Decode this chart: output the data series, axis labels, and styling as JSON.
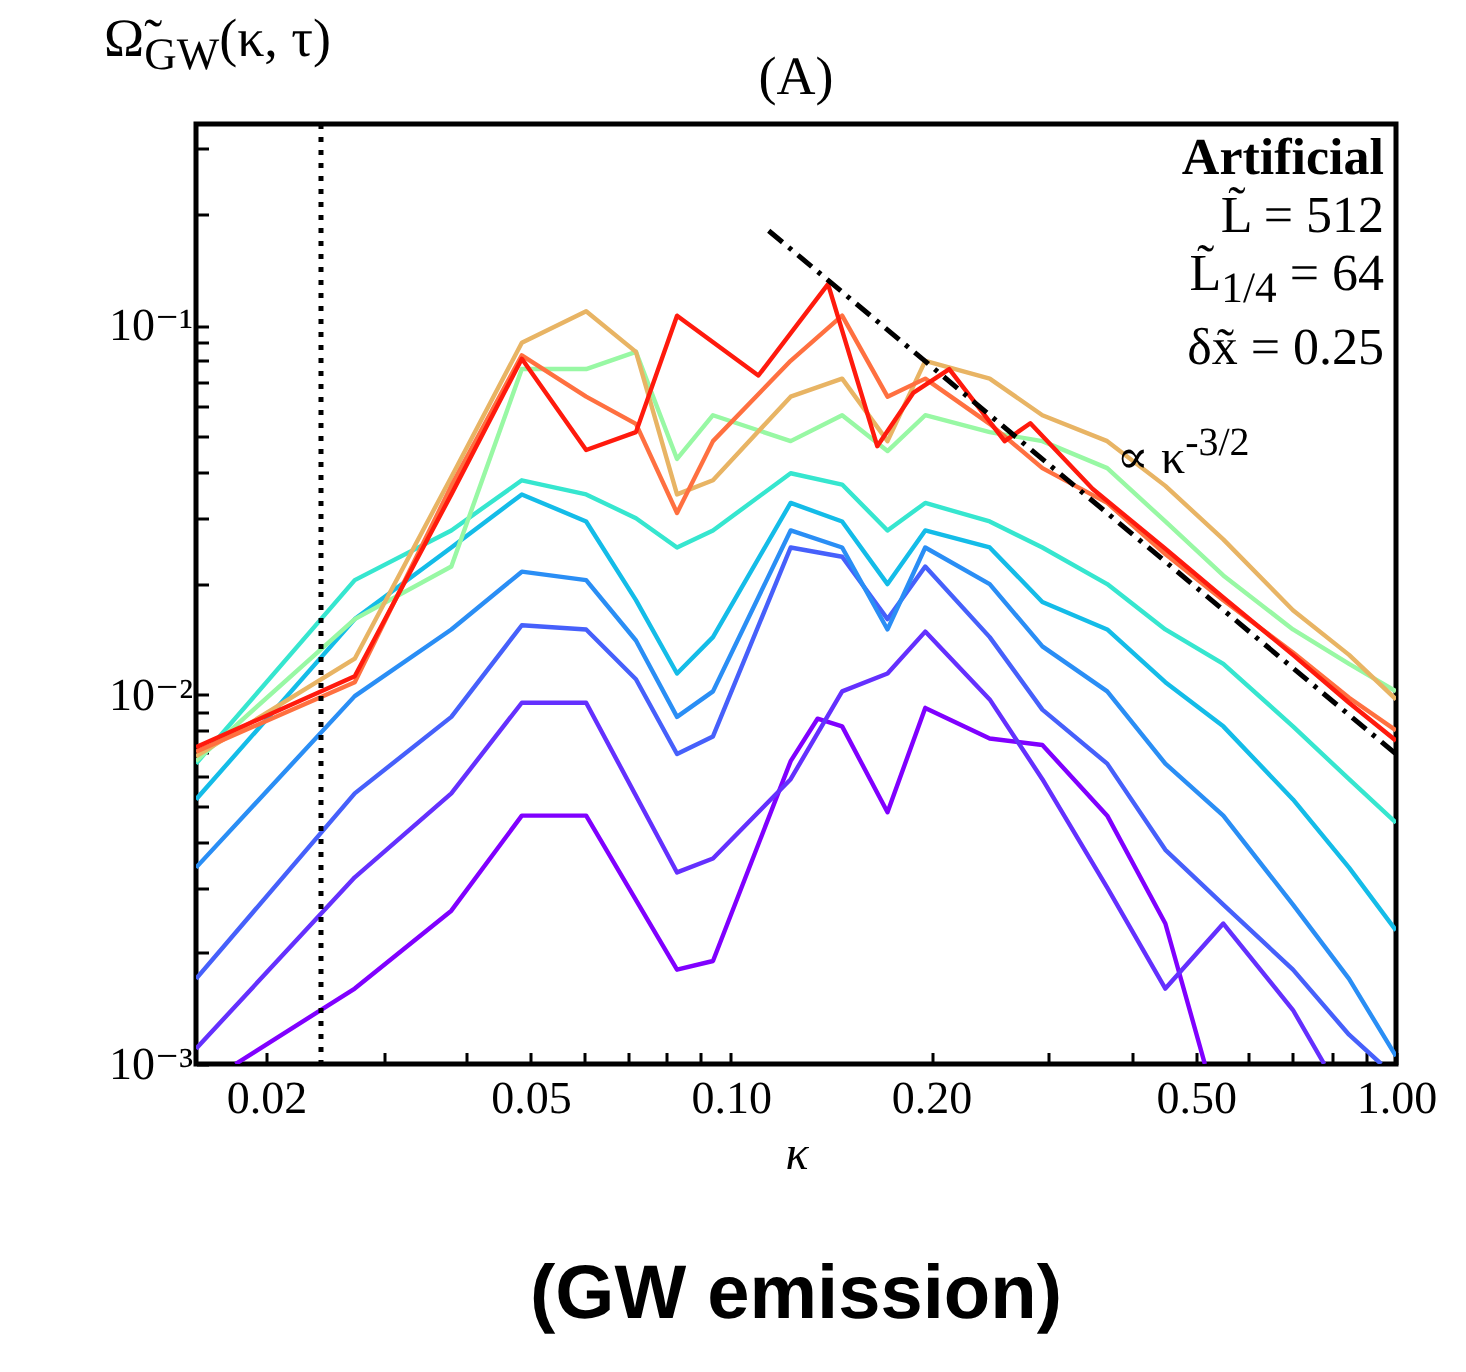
{
  "chart_data": {
    "type": "line",
    "title": "(A)",
    "xlabel": "κ",
    "ylabel": "Ω̃$_{GW}$(κ, τ)",
    "log": "xy",
    "grid": false,
    "xlim": [
      0.0157,
      1.0
    ],
    "ylim": [
      0.001,
      0.35
    ],
    "xticks": [
      {
        "value": 0.02,
        "label": "0.02"
      },
      {
        "value": 0.03,
        "label": null
      },
      {
        "value": 0.04,
        "label": null
      },
      {
        "value": 0.05,
        "label": "0.05"
      },
      {
        "value": 0.06,
        "label": null
      },
      {
        "value": 0.07,
        "label": null
      },
      {
        "value": 0.08,
        "label": null
      },
      {
        "value": 0.09,
        "label": null
      },
      {
        "value": 0.1,
        "label": "0.10"
      },
      {
        "value": 0.2,
        "label": "0.20"
      },
      {
        "value": 0.3,
        "label": null
      },
      {
        "value": 0.4,
        "label": null
      },
      {
        "value": 0.5,
        "label": "0.50"
      },
      {
        "value": 0.6,
        "label": null
      },
      {
        "value": 0.7,
        "label": null
      },
      {
        "value": 0.8,
        "label": null
      },
      {
        "value": 0.9,
        "label": null
      },
      {
        "value": 1.0,
        "label": "1.00"
      }
    ],
    "yticks": [
      {
        "value": 0.001,
        "label": "10⁻³"
      },
      {
        "value": 0.002,
        "label": null
      },
      {
        "value": 0.003,
        "label": null
      },
      {
        "value": 0.004,
        "label": null
      },
      {
        "value": 0.005,
        "label": null
      },
      {
        "value": 0.006,
        "label": null
      },
      {
        "value": 0.007,
        "label": null
      },
      {
        "value": 0.008,
        "label": null
      },
      {
        "value": 0.009,
        "label": null
      },
      {
        "value": 0.01,
        "label": "10⁻²"
      },
      {
        "value": 0.02,
        "label": null
      },
      {
        "value": 0.03,
        "label": null
      },
      {
        "value": 0.04,
        "label": null
      },
      {
        "value": 0.05,
        "label": null
      },
      {
        "value": 0.06,
        "label": null
      },
      {
        "value": 0.07,
        "label": null
      },
      {
        "value": 0.08,
        "label": null
      },
      {
        "value": 0.09,
        "label": null
      },
      {
        "value": 0.1,
        "label": "10⁻¹"
      },
      {
        "value": 0.2,
        "label": null
      },
      {
        "value": 0.3,
        "label": null
      }
    ],
    "x": [
      0.0157,
      0.0272,
      0.038,
      0.0485,
      0.0606,
      0.072,
      0.083,
      0.094,
      0.123,
      0.147,
      0.172,
      0.196,
      0.245,
      0.294,
      0.368,
      0.45,
      0.55,
      0.7,
      0.85,
      1.0
    ],
    "series": [
      {
        "color": "#8000ff",
        "x": [
          0.018,
          0.0272,
          0.038,
          0.0485,
          0.0606,
          0.083,
          0.094,
          0.123,
          0.135,
          0.147,
          0.172,
          0.196,
          0.245,
          0.294,
          0.368,
          0.45,
          0.516
        ],
        "values": [
          0.001,
          0.0016,
          0.0026,
          0.0047,
          0.0047,
          0.0018,
          0.0019,
          0.0066,
          0.0086,
          0.0082,
          0.0048,
          0.0092,
          0.0076,
          0.0073,
          0.0047,
          0.0024,
          0.001
        ]
      },
      {
        "color": "#6430fe",
        "x": [
          0.0157,
          0.0272,
          0.038,
          0.0485,
          0.0606,
          0.083,
          0.094,
          0.123,
          0.147,
          0.172,
          0.196,
          0.245,
          0.294,
          0.368,
          0.45,
          0.55,
          0.7,
          0.78
        ],
        "values": [
          0.0011,
          0.0032,
          0.0054,
          0.0095,
          0.0095,
          0.0033,
          0.0036,
          0.0059,
          0.0102,
          0.0114,
          0.0148,
          0.0097,
          0.0059,
          0.003,
          0.0016,
          0.0024,
          0.0014,
          0.001
        ]
      },
      {
        "color": "#4660fb",
        "x": [
          0.0157,
          0.0272,
          0.038,
          0.0485,
          0.0606,
          0.072,
          0.083,
          0.094,
          0.123,
          0.147,
          0.172,
          0.196,
          0.245,
          0.294,
          0.368,
          0.45,
          0.55,
          0.7,
          0.85,
          0.95
        ],
        "values": [
          0.0017,
          0.0054,
          0.0087,
          0.0154,
          0.015,
          0.011,
          0.0069,
          0.0077,
          0.025,
          0.0236,
          0.016,
          0.0222,
          0.0143,
          0.0091,
          0.0065,
          0.0038,
          0.0027,
          0.0018,
          0.0012,
          0.001
        ]
      },
      {
        "color": "#2a8ef5",
        "values": [
          0.0034,
          0.0099,
          0.015,
          0.0215,
          0.0204,
          0.014,
          0.0087,
          0.0102,
          0.0278,
          0.025,
          0.015,
          0.025,
          0.0199,
          0.0135,
          0.0102,
          0.0065,
          0.0047,
          0.0027,
          0.0017,
          0.00105
        ]
      },
      {
        "color": "#14bce8",
        "values": [
          0.0052,
          0.016,
          0.025,
          0.0348,
          0.0294,
          0.018,
          0.0114,
          0.0143,
          0.033,
          0.0294,
          0.0199,
          0.0278,
          0.025,
          0.0178,
          0.015,
          0.0108,
          0.0082,
          0.0052,
          0.0034,
          0.0023
        ]
      },
      {
        "color": "#36e6cf",
        "values": [
          0.0065,
          0.0204,
          0.0278,
          0.038,
          0.0348,
          0.03,
          0.025,
          0.0278,
          0.0397,
          0.037,
          0.0278,
          0.033,
          0.0294,
          0.025,
          0.0199,
          0.015,
          0.0121,
          0.0082,
          0.0059,
          0.0045
        ]
      },
      {
        "color": "#98f8a4",
        "values": [
          0.0066,
          0.016,
          0.0222,
          0.076,
          0.076,
          0.0846,
          0.0434,
          0.057,
          0.0485,
          0.057,
          0.0456,
          0.057,
          0.0513,
          0.0485,
          0.041,
          0.0294,
          0.021,
          0.015,
          0.0121,
          0.0102
        ]
      },
      {
        "color": "#e8b464",
        "values": [
          0.0068,
          0.0125,
          0.0388,
          0.0895,
          0.109,
          0.0846,
          0.0348,
          0.038,
          0.064,
          0.0716,
          0.0485,
          0.08,
          0.0716,
          0.057,
          0.0485,
          0.0367,
          0.0263,
          0.0169,
          0.0128,
          0.0097
        ]
      },
      {
        "color": "#ff7040",
        "values": [
          0.007,
          0.0108,
          0.0367,
          0.0828,
          0.064,
          0.054,
          0.031,
          0.0485,
          0.08,
          0.106,
          0.064,
          0.0716,
          0.054,
          0.041,
          0.033,
          0.024,
          0.018,
          0.013,
          0.0098,
          0.008
        ]
      },
      {
        "color": "#ff1a0d",
        "x": [
          0.0157,
          0.0272,
          0.038,
          0.0485,
          0.0606,
          0.072,
          0.083,
          0.11,
          0.14,
          0.166,
          0.188,
          0.213,
          0.258,
          0.282,
          0.35,
          0.45,
          0.55,
          0.7,
          0.85,
          1.0
        ],
        "values": [
          0.0072,
          0.0112,
          0.0348,
          0.081,
          0.0459,
          0.0513,
          0.106,
          0.073,
          0.129,
          0.047,
          0.0655,
          0.076,
          0.0485,
          0.0542,
          0.036,
          0.0248,
          0.0183,
          0.0128,
          0.0095,
          0.0075
        ]
      },
      {
        "type": "line",
        "color": "#000000",
        "line_style": "dashed",
        "x": [
          0.114,
          1.0
        ],
        "values": [
          0.18,
          0.0069
        ]
      }
    ],
    "ref_lines": [
      {
        "axis": "x",
        "value": 0.0242,
        "color": "#000000",
        "line_style": "dotted"
      }
    ],
    "annotations": [
      "Artificial",
      "L̃ = 512",
      "L̃$_{1/4}$ = 64",
      "δx̃ = 0.25",
      {
        "text": "∝ κ$^{-3/2}$",
        "x": 0.38,
        "y": 0.045
      },
      "(GW emission)"
    ]
  }
}
